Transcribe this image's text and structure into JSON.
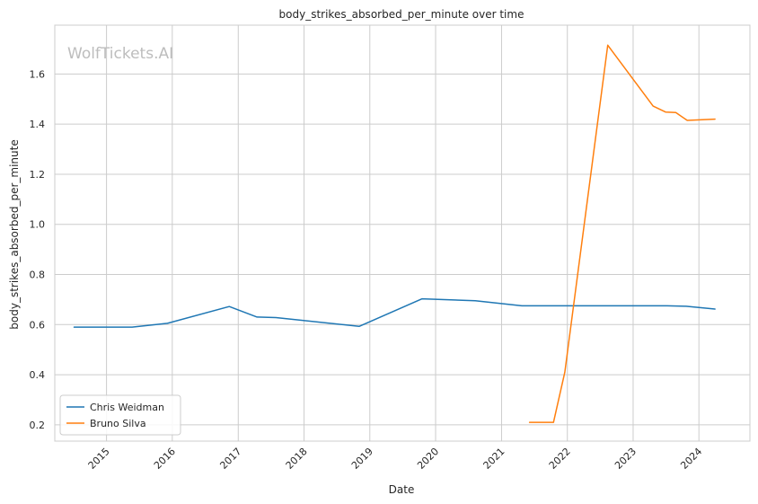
{
  "chart_data": {
    "type": "line",
    "title": "body_strikes_absorbed_per_minute over time",
    "xlabel": "Date",
    "ylabel": "body_strikes_absorbed_per_minute",
    "watermark": "WolfTickets.AI",
    "x_ticks": [
      "2015",
      "2016",
      "2017",
      "2018",
      "2019",
      "2020",
      "2021",
      "2022",
      "2023",
      "2024"
    ],
    "y_ticks": [
      "0.2",
      "0.4",
      "0.6",
      "0.8",
      "1.0",
      "1.2",
      "1.4",
      "1.6"
    ],
    "xlim": [
      "2014-03-20",
      "2024-10-10"
    ],
    "ylim": [
      0.135,
      1.795
    ],
    "grid": true,
    "legend_position": "lower-left",
    "series": [
      {
        "name": "Chris Weidman",
        "color": "#1f77b4",
        "points": [
          [
            "2014-07-05",
            0.59
          ],
          [
            "2015-05-23",
            0.59
          ],
          [
            "2015-12-05",
            0.605
          ],
          [
            "2016-11-12",
            0.672
          ],
          [
            "2017-04-15",
            0.63
          ],
          [
            "2017-07-29",
            0.628
          ],
          [
            "2018-11-03",
            0.593
          ],
          [
            "2019-10-18",
            0.703
          ],
          [
            "2020-08-08",
            0.695
          ],
          [
            "2021-04-24",
            0.675
          ],
          [
            "2023-07-08",
            0.675
          ],
          [
            "2023-10-21",
            0.673
          ],
          [
            "2024-03-30",
            0.662
          ]
        ]
      },
      {
        "name": "Bruno Silva",
        "color": "#ff7f0e",
        "points": [
          [
            "2021-06-05",
            0.21
          ],
          [
            "2021-10-16",
            0.21
          ],
          [
            "2021-12-18",
            0.41
          ],
          [
            "2022-08-13",
            1.715
          ],
          [
            "2023-04-22",
            1.472
          ],
          [
            "2023-07-01",
            1.448
          ],
          [
            "2023-08-26",
            1.446
          ],
          [
            "2023-10-28",
            1.415
          ],
          [
            "2024-03-30",
            1.42
          ]
        ]
      }
    ]
  }
}
